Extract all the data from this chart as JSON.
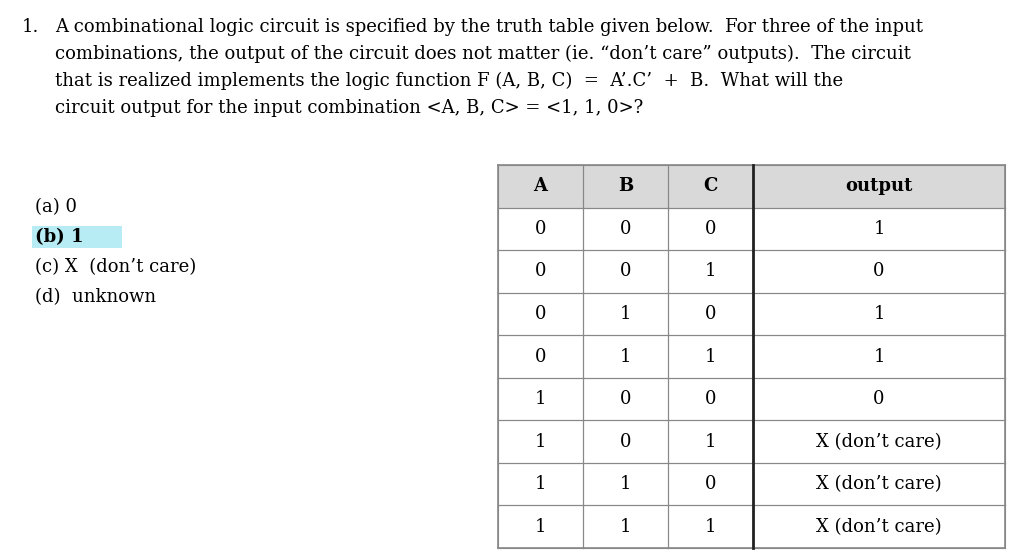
{
  "background_color": "#ffffff",
  "question_number": "1.",
  "question_text_lines": [
    "A combinational logic circuit is specified by the truth table given below.  For three of the input",
    "combinations, the output of the circuit does not matter (ie. “don’t care” outputs).  The circuit",
    "that is realized implements the logic function F (A, B, C)  =  A’.C’  +  B.  What will the",
    "circuit output for the input combination <A, B, C> = <1, 1, 0>?"
  ],
  "choices": [
    {
      "label": "(a) 0",
      "bold": false,
      "highlight": false
    },
    {
      "label": "(b) 1",
      "bold": true,
      "highlight": true
    },
    {
      "label": "(c) X  (don’t care)",
      "bold": false,
      "highlight": false
    },
    {
      "label": "(d)  unknown",
      "bold": false,
      "highlight": false
    }
  ],
  "highlight_color": "#b8ecf5",
  "table_headers": [
    "A",
    "B",
    "C",
    "output"
  ],
  "table_rows": [
    [
      "0",
      "0",
      "0",
      "1"
    ],
    [
      "0",
      "0",
      "1",
      "0"
    ],
    [
      "0",
      "1",
      "0",
      "1"
    ],
    [
      "0",
      "1",
      "1",
      "1"
    ],
    [
      "1",
      "0",
      "0",
      "0"
    ],
    [
      "1",
      "0",
      "1",
      "X (don’t care)"
    ],
    [
      "1",
      "1",
      "0",
      "X (don’t care)"
    ],
    [
      "1",
      "1",
      "1",
      "X (don’t care)"
    ]
  ],
  "header_bg": "#d9d9d9",
  "table_border_color": "#888888",
  "table_divider_color": "#222222",
  "font_size_question": 13.0,
  "font_size_table": 13.0,
  "font_family": "DejaVu Serif"
}
